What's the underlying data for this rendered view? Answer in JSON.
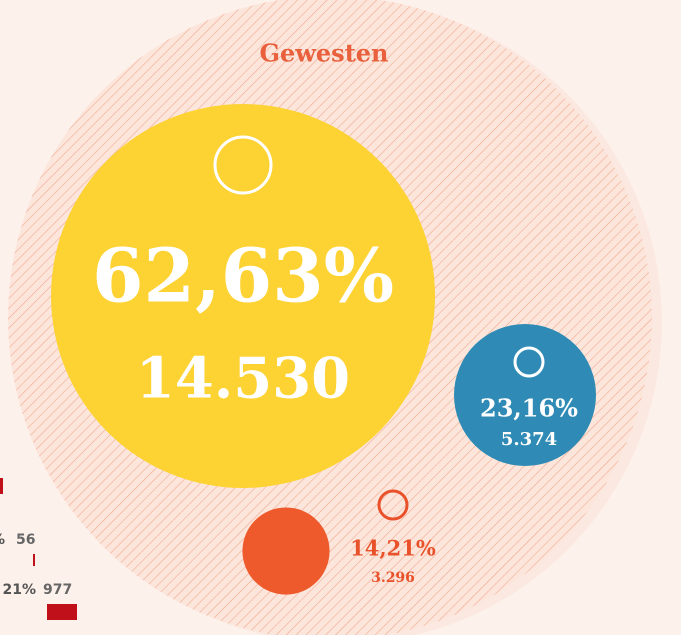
{
  "chart_data": {
    "type": "bubble",
    "title": "Gewesten",
    "values": [
      62.63,
      23.16,
      14.21
    ],
    "value_labels": [
      "62,63%",
      "23,16%",
      "14,21%"
    ],
    "counts": [
      14530,
      5374,
      3296
    ],
    "count_labels": [
      "14.530",
      "5.374",
      "3.296"
    ],
    "colors": [
      "#fdd233",
      "#2f8bb5",
      "#ee5a2b"
    ],
    "side_labels": [
      "%",
      "21%"
    ],
    "side_values": [
      56,
      977
    ],
    "side_color": "#c0111a"
  }
}
